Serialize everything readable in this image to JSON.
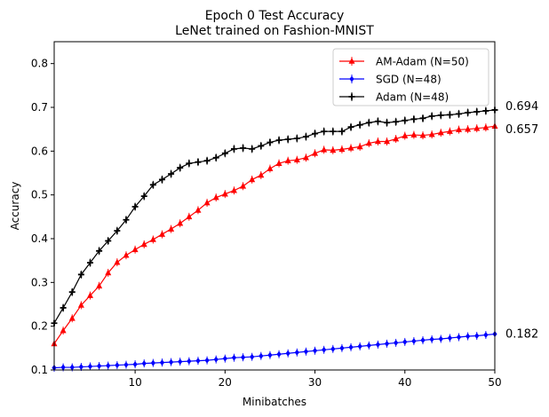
{
  "chart_data": {
    "type": "line",
    "title": "Epoch 0 Test Accuracy",
    "subtitle": "LeNet trained on Fashion-MNIST",
    "xlabel": "Minibatches",
    "ylabel": "Accuracy",
    "xlim": [
      1,
      50
    ],
    "ylim": [
      0.1,
      0.85
    ],
    "xticks": [
      10,
      20,
      30,
      40,
      50
    ],
    "yticks": [
      0.1,
      0.2,
      0.3,
      0.4,
      0.5,
      0.6,
      0.7,
      0.8
    ],
    "legend_position": "top-right",
    "x": [
      1,
      2,
      3,
      4,
      5,
      6,
      7,
      8,
      9,
      10,
      11,
      12,
      13,
      14,
      15,
      16,
      17,
      18,
      19,
      20,
      21,
      22,
      23,
      24,
      25,
      26,
      27,
      28,
      29,
      30,
      31,
      32,
      33,
      34,
      35,
      36,
      37,
      38,
      39,
      40,
      41,
      42,
      43,
      44,
      45,
      46,
      47,
      48,
      49,
      50
    ],
    "series": [
      {
        "name": "AM-Adam (N=50)",
        "color": "#ff0000",
        "marker": "triangle",
        "end_label": "0.657",
        "values": [
          0.16,
          0.19,
          0.218,
          0.248,
          0.27,
          0.292,
          0.322,
          0.346,
          0.362,
          0.375,
          0.387,
          0.398,
          0.41,
          0.422,
          0.435,
          0.45,
          0.465,
          0.482,
          0.494,
          0.502,
          0.51,
          0.52,
          0.535,
          0.545,
          0.56,
          0.572,
          0.578,
          0.58,
          0.585,
          0.595,
          0.603,
          0.602,
          0.604,
          0.607,
          0.61,
          0.618,
          0.622,
          0.622,
          0.628,
          0.635,
          0.637,
          0.636,
          0.638,
          0.642,
          0.645,
          0.649,
          0.65,
          0.652,
          0.654,
          0.657
        ]
      },
      {
        "name": "SGD (N=48)",
        "color": "#0000ff",
        "marker": "diamond",
        "end_label": "0.182",
        "values": [
          0.105,
          0.106,
          0.106,
          0.107,
          0.108,
          0.109,
          0.11,
          0.111,
          0.112,
          0.113,
          0.115,
          0.116,
          0.117,
          0.118,
          0.119,
          0.12,
          0.121,
          0.122,
          0.124,
          0.126,
          0.128,
          0.129,
          0.13,
          0.132,
          0.134,
          0.136,
          0.138,
          0.14,
          0.142,
          0.144,
          0.146,
          0.148,
          0.15,
          0.152,
          0.154,
          0.156,
          0.158,
          0.16,
          0.162,
          0.164,
          0.166,
          0.168,
          0.17,
          0.171,
          0.173,
          0.175,
          0.177,
          0.178,
          0.18,
          0.182
        ]
      },
      {
        "name": "Adam (N=48)",
        "color": "#000000",
        "marker": "plus",
        "end_label": "0.694",
        "values": [
          0.207,
          0.242,
          0.278,
          0.318,
          0.345,
          0.372,
          0.395,
          0.418,
          0.443,
          0.473,
          0.497,
          0.523,
          0.535,
          0.548,
          0.562,
          0.572,
          0.575,
          0.578,
          0.585,
          0.595,
          0.605,
          0.607,
          0.605,
          0.612,
          0.62,
          0.625,
          0.627,
          0.629,
          0.633,
          0.64,
          0.645,
          0.645,
          0.645,
          0.655,
          0.66,
          0.665,
          0.668,
          0.665,
          0.667,
          0.67,
          0.673,
          0.675,
          0.68,
          0.682,
          0.683,
          0.685,
          0.688,
          0.69,
          0.692,
          0.694
        ]
      }
    ]
  }
}
